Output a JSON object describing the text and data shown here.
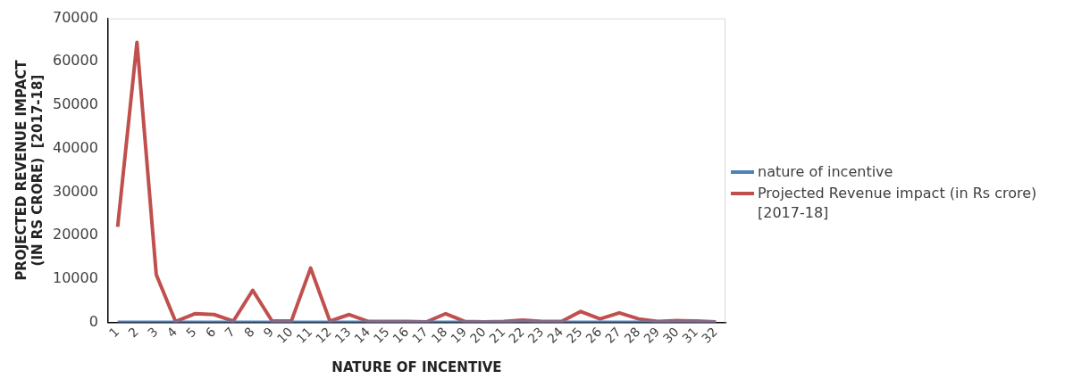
{
  "chart_data": {
    "type": "line",
    "xlabel": "NATURE OF INCENTIVE",
    "ylabel": "PROJECTED REVENUE IMPACT  (IN RS CRORE)  [2017-18]",
    "categories": [
      "1",
      "2",
      "3",
      "4",
      "5",
      "6",
      "7",
      "8",
      "9",
      "10",
      "11",
      "12",
      "13",
      "14",
      "15",
      "16",
      "17",
      "18",
      "19",
      "20",
      "21",
      "22",
      "23",
      "24",
      "25",
      "26",
      "27",
      "28",
      "29",
      "30",
      "31",
      "32"
    ],
    "series": [
      {
        "name": "nature of incentive",
        "color": "#4f81bd",
        "values": [
          0,
          0,
          0,
          0,
          0,
          0,
          0,
          0,
          0,
          0,
          0,
          0,
          0,
          0,
          0,
          0,
          0,
          0,
          0,
          0,
          0,
          0,
          0,
          0,
          0,
          0,
          0,
          0,
          0,
          0,
          0,
          0
        ]
      },
      {
        "name": "Projected Revenue impact  (in Rs crore)[2017-18]",
        "color": "#c0504d",
        "values": [
          22000,
          64500,
          11000,
          200,
          2000,
          1800,
          300,
          7400,
          300,
          300,
          12500,
          300,
          1800,
          200,
          200,
          200,
          100,
          2000,
          200,
          100,
          200,
          500,
          200,
          200,
          2500,
          800,
          2200,
          800,
          200,
          400,
          300,
          100
        ]
      }
    ],
    "ylim": [
      0,
      70000
    ],
    "yticks": [
      0,
      10000,
      20000,
      30000,
      40000,
      50000,
      60000,
      70000
    ],
    "grid": false,
    "legend": "right",
    "marker": "none",
    "line_style": "solid"
  }
}
